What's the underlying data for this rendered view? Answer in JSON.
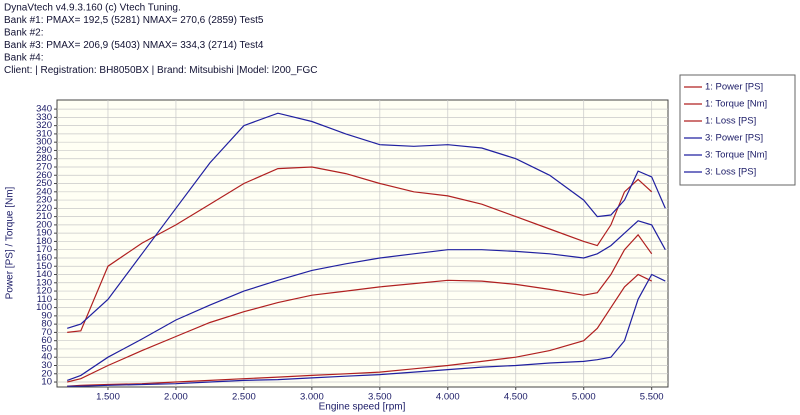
{
  "header": {
    "lines": [
      "DynaVtech v4.9.3.160 (c) Vtech Tuning.",
      "Bank #1: PMAX= 192,5 (5281)     NMAX= 270,6 (2859)     Test5",
      "Bank #2:",
      "Bank #3: PMAX= 206,9 (5403)     NMAX= 334,3 (2714)     Test4",
      "Bank #4:",
      "Client:    | Registration:  BH8050BX | Brand: Mitsubishi |Model:  l200_FGC"
    ]
  },
  "chart_data": {
    "type": "line",
    "xlabel": "Engine speed [rpm]",
    "ylabel": "Power [PS] / Torque [Nm]",
    "x": [
      1200,
      1300,
      1500,
      1750,
      2000,
      2250,
      2500,
      2750,
      3000,
      3250,
      3500,
      3750,
      4000,
      4250,
      4500,
      4750,
      5000,
      5100,
      5200,
      5300,
      5400,
      5500,
      5600
    ],
    "xlim": [
      1125,
      5620
    ],
    "xticks": [
      {
        "value": 1500,
        "label": "1.500"
      },
      {
        "value": 2000,
        "label": "2.000"
      },
      {
        "value": 2500,
        "label": "2.500"
      },
      {
        "value": 3000,
        "label": "3.000"
      },
      {
        "value": 3500,
        "label": "3.500"
      },
      {
        "value": 4000,
        "label": "4.000"
      },
      {
        "value": 4500,
        "label": "4.500"
      },
      {
        "value": 5000,
        "label": "5.000"
      },
      {
        "value": 5500,
        "label": "5.500"
      }
    ],
    "ylim": [
      4,
      351
    ],
    "yticks": [
      10,
      20,
      30,
      40,
      50,
      60,
      70,
      80,
      90,
      100,
      110,
      120,
      130,
      140,
      150,
      160,
      170,
      180,
      190,
      200,
      210,
      220,
      230,
      240,
      250,
      260,
      270,
      280,
      290,
      300,
      310,
      320,
      330,
      340
    ],
    "grid": true,
    "legend": "right",
    "series": [
      {
        "name": "1: Power [PS]",
        "color": "#b02020",
        "values": [
          10,
          14,
          30,
          48,
          65,
          82,
          95,
          106,
          115,
          120,
          125,
          129,
          133,
          132,
          128,
          122,
          115,
          118,
          140,
          170,
          188,
          165,
          null
        ]
      },
      {
        "name": "1: Torque [Nm]",
        "color": "#b02020",
        "values": [
          70,
          72,
          150,
          178,
          200,
          225,
          250,
          268,
          270,
          262,
          250,
          240,
          235,
          225,
          210,
          195,
          180,
          175,
          200,
          240,
          255,
          240,
          null
        ]
      },
      {
        "name": "1: Loss [PS]",
        "color": "#b02020",
        "values": [
          5,
          6,
          7,
          8,
          10,
          12,
          14,
          16,
          18,
          20,
          22,
          26,
          30,
          35,
          40,
          48,
          60,
          75,
          100,
          125,
          140,
          132,
          null
        ]
      },
      {
        "name": "3: Power [PS]",
        "color": "#2020a0",
        "values": [
          12,
          18,
          40,
          62,
          85,
          103,
          120,
          133,
          145,
          153,
          160,
          165,
          170,
          170,
          168,
          165,
          160,
          165,
          175,
          190,
          205,
          200,
          170
        ]
      },
      {
        "name": "3: Torque [Nm]",
        "color": "#2020a0",
        "values": [
          75,
          80,
          110,
          165,
          220,
          275,
          320,
          335,
          325,
          310,
          297,
          295,
          297,
          293,
          280,
          260,
          230,
          210,
          212,
          230,
          265,
          258,
          220
        ]
      },
      {
        "name": "3: Loss [PS]",
        "color": "#2020a0",
        "values": [
          5,
          5,
          6,
          7,
          8,
          10,
          12,
          13,
          15,
          17,
          19,
          22,
          25,
          28,
          30,
          33,
          35,
          37,
          40,
          60,
          110,
          140,
          132
        ]
      }
    ]
  }
}
